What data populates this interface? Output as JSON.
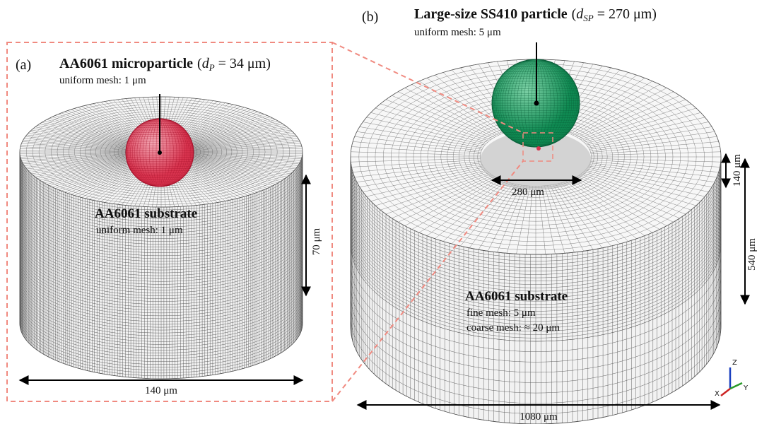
{
  "panels": [
    {
      "label": "(a)",
      "particle": {
        "name": "AA6061 microparticle",
        "open": "(",
        "symbol": "d",
        "subscript": "P",
        "value": " = 34 μm)",
        "mesh": "uniform mesh: 1 μm"
      },
      "substrate": {
        "name": "AA6061 substrate",
        "mesh": "uniform mesh: 1 μm"
      },
      "dimensions": {
        "height": "70 μm",
        "width": "140 μm"
      }
    },
    {
      "label": "(b)",
      "particle": {
        "name": "Large-size SS410 particle",
        "open": "(",
        "symbol": "d",
        "subscript": "SP",
        "value": " = 270 μm)",
        "mesh": "uniform mesh: 5 μm"
      },
      "substrate": {
        "name": "AA6061 substrate",
        "fine_mesh": "fine mesh: 5 μm",
        "coarse_mesh": "coarse mesh: ≈ 20 μm"
      },
      "dimensions": {
        "fine_height": "140 μm",
        "height": "540 μm",
        "crater": "280 μm",
        "width": "1080 μm"
      }
    }
  ],
  "axes_triad": {
    "z": "Z",
    "x": "X",
    "y": "Y"
  }
}
